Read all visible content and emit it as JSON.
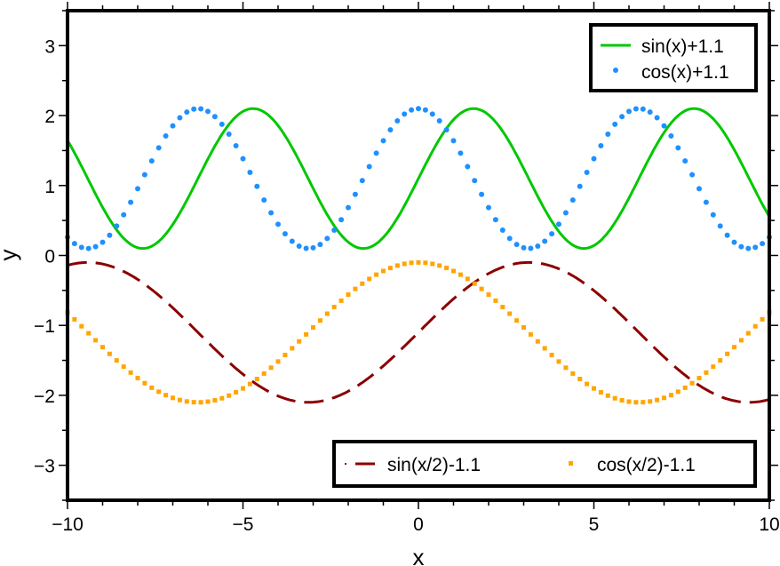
{
  "chart_data": {
    "type": "line",
    "xlabel": "x",
    "ylabel": "y",
    "xlim": [
      -10,
      10
    ],
    "ylim": [
      -3.5,
      3.5
    ],
    "x_ticks": [
      -10,
      -5,
      0,
      5,
      10
    ],
    "x_tick_labels": [
      "−10",
      "−5",
      "0",
      "5",
      "10"
    ],
    "y_ticks": [
      -3,
      -2,
      -1,
      0,
      1,
      2,
      3
    ],
    "y_tick_labels": [
      "−3",
      "−2",
      "−1",
      "0",
      "1",
      "2",
      "3"
    ],
    "grid": false,
    "x_sampling": {
      "start": -10,
      "stop": 10,
      "step": 0.2
    },
    "series": [
      {
        "name": "sin(x)+1.1",
        "function": "sin",
        "freq": 1,
        "offset": 1.1,
        "style": "solid",
        "color": "#00c800",
        "legend": "top-right"
      },
      {
        "name": "cos(x)+1.1",
        "function": "cos",
        "freq": 1,
        "offset": 1.1,
        "style": "dots",
        "color": "#1e90ff",
        "legend": "top-right"
      },
      {
        "name": "sin(x/2)-1.1",
        "function": "sin",
        "freq": 0.5,
        "offset": -1.1,
        "style": "dashed",
        "color": "#8b0000",
        "legend": "bottom-right"
      },
      {
        "name": "cos(x/2)-1.1",
        "function": "cos",
        "freq": 0.5,
        "offset": -1.1,
        "style": "squares",
        "color": "#ffa500",
        "legend": "bottom-right"
      }
    ]
  }
}
